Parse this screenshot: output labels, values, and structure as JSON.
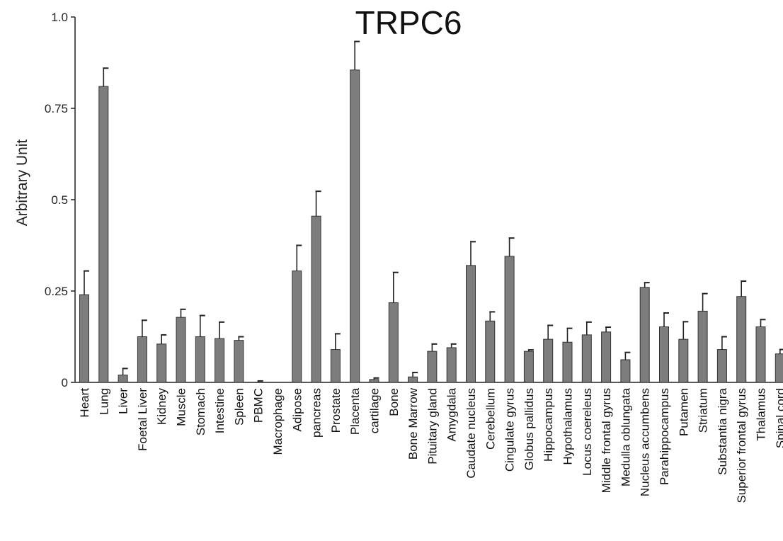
{
  "chart_data": {
    "type": "bar",
    "title": "TRPC6",
    "ylabel": "Arbitrary Unit",
    "xlabel": "",
    "ylim": [
      0,
      1.0
    ],
    "yticks": [
      0,
      0.25,
      0.5,
      0.75,
      1.0
    ],
    "ytick_labels": [
      "0",
      "0.25",
      "0.5",
      "0.75",
      "1.0"
    ],
    "grid": false,
    "bar_color": "#7d7d7d",
    "categories": [
      "Heart",
      "Lung",
      "Liver",
      "Foetal Liver",
      "Kidney",
      "Muscle",
      "Stomach",
      "Intestine",
      "Spleen",
      "PBMC",
      "Macrophage",
      "Adipose",
      "pancreas",
      "Prostate",
      "Placenta",
      "cartilage",
      "Bone",
      "Bone Marrow",
      "Pituitary gland",
      "Amygdala",
      "Caudate nucleus",
      "Cerebellum",
      "Cingulate gyrus",
      "Globus pallidus",
      "Hippocampus",
      "Hypothalamus",
      "Locus coereleus",
      "Middle frontal gyrus",
      "Medulla oblungata",
      "Nucleus accumbens",
      "Parahippocampus",
      "Putamen",
      "Striatum",
      "Substantia nigra",
      "Superior frontal gyrus",
      "Thalamus",
      "Spinal cord"
    ],
    "values": [
      0.24,
      0.81,
      0.02,
      0.125,
      0.105,
      0.178,
      0.125,
      0.12,
      0.115,
      0.0,
      0.0,
      0.305,
      0.455,
      0.09,
      0.855,
      0.008,
      0.218,
      0.015,
      0.085,
      0.095,
      0.32,
      0.168,
      0.345,
      0.085,
      0.118,
      0.11,
      0.13,
      0.138,
      0.062,
      0.26,
      0.152,
      0.118,
      0.195,
      0.09,
      0.235,
      0.152,
      0.078
    ],
    "errors": [
      0.065,
      0.05,
      0.018,
      0.045,
      0.025,
      0.022,
      0.058,
      0.045,
      0.01,
      0.004,
      0.0,
      0.07,
      0.068,
      0.043,
      0.078,
      0.004,
      0.083,
      0.012,
      0.02,
      0.01,
      0.065,
      0.025,
      0.05,
      0.004,
      0.038,
      0.038,
      0.035,
      0.013,
      0.02,
      0.013,
      0.038,
      0.048,
      0.048,
      0.035,
      0.042,
      0.02,
      0.012
    ]
  }
}
